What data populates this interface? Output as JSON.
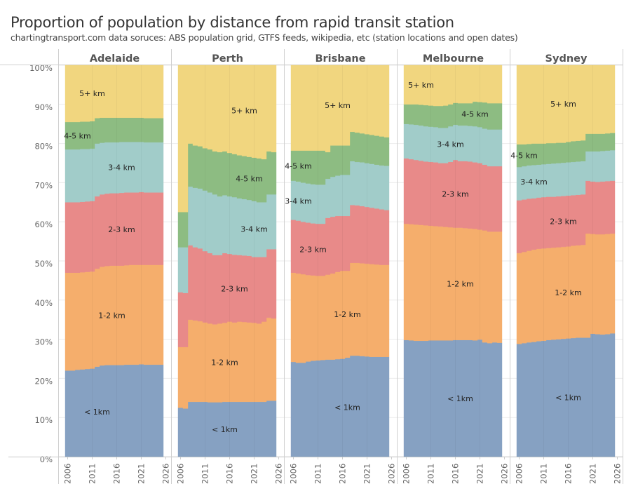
{
  "title": "Proportion of population by distance from rapid transit station",
  "subtitle": "chartingtransport.com  data soruces: ABS population grid, GTFS feeds, wikipedia, etc (station locations and open dates)",
  "chart_data": {
    "type": "area",
    "stacked": true,
    "value_meaning": "cumulative upper boundary (%) of each distance band; 5+ km fills to 100%",
    "ylim": [
      0,
      100
    ],
    "y_ticks": [
      "0%",
      "10%",
      "20%",
      "30%",
      "40%",
      "50%",
      "60%",
      "70%",
      "80%",
      "90%",
      "100%"
    ],
    "x_ticks": [
      "2006",
      "2011",
      "2016",
      "2021",
      "2026"
    ],
    "years": [
      2006,
      2007,
      2008,
      2009,
      2010,
      2011,
      2012,
      2013,
      2014,
      2015,
      2016,
      2017,
      2018,
      2019,
      2020,
      2021,
      2022,
      2023,
      2024,
      2025
    ],
    "bands": [
      "< 1km",
      "1-2 km",
      "2-3 km",
      "3-4 km",
      "4-5 km",
      "5+ km"
    ],
    "colors": [
      "#86a1c2",
      "#f5ae6c",
      "#e88a89",
      "#a1ccc9",
      "#8dbc82",
      "#f1d67f"
    ],
    "panels": [
      {
        "name": "Adelaide",
        "cumulative": [
          [
            22,
            22,
            22.2,
            22.3,
            22.4,
            22.5,
            23,
            23.3,
            23.4,
            23.4,
            23.4,
            23.4,
            23.5,
            23.5,
            23.5,
            23.6,
            23.5,
            23.5,
            23.5,
            23.5
          ],
          [
            47,
            47,
            47,
            47.1,
            47.2,
            47.3,
            48,
            48.5,
            48.7,
            48.8,
            48.8,
            48.8,
            48.9,
            49,
            49,
            49,
            49,
            49,
            49,
            49
          ],
          [
            65,
            65,
            65,
            65.1,
            65.2,
            65.3,
            66.5,
            67,
            67.2,
            67.3,
            67.3,
            67.4,
            67.5,
            67.5,
            67.5,
            67.6,
            67.5,
            67.5,
            67.5,
            67.5
          ],
          [
            78.5,
            78.5,
            78.5,
            78.6,
            78.6,
            78.7,
            80,
            80.2,
            80.3,
            80.3,
            80.3,
            80.4,
            80.4,
            80.4,
            80.4,
            80.4,
            80.3,
            80.3,
            80.3,
            80.3
          ],
          [
            85.5,
            85.5,
            85.5,
            85.6,
            85.6,
            85.7,
            86.5,
            86.6,
            86.6,
            86.6,
            86.6,
            86.6,
            86.6,
            86.6,
            86.6,
            86.6,
            86.5,
            86.5,
            86.5,
            86.5
          ]
        ]
      },
      {
        "name": "Perth",
        "cumulative": [
          [
            12.5,
            12.3,
            14,
            14,
            14,
            14,
            13.9,
            13.9,
            13.9,
            14,
            14,
            14,
            14,
            14,
            14,
            14,
            14,
            14,
            14.3,
            14.3
          ],
          [
            28,
            28,
            35,
            34.8,
            34.6,
            34.3,
            34,
            33.8,
            34,
            34.2,
            34.5,
            34.3,
            34.5,
            34.4,
            34.3,
            34.2,
            34,
            34.5,
            35.5,
            35.3
          ],
          [
            42,
            41.8,
            54,
            53.5,
            53.2,
            52.5,
            52,
            51.5,
            51.5,
            52,
            51.8,
            51.6,
            51.5,
            51.4,
            51.3,
            51,
            51,
            51,
            53,
            53
          ],
          [
            53.5,
            53.5,
            69,
            68.7,
            68.5,
            68,
            67.5,
            67,
            66.5,
            66.8,
            66.5,
            66.3,
            66,
            65.8,
            65.6,
            65.3,
            65,
            65,
            67,
            67
          ],
          [
            62.5,
            62.5,
            80,
            79.5,
            79.3,
            78.8,
            78.5,
            78,
            77.8,
            78,
            77.6,
            77.3,
            77,
            76.8,
            76.6,
            76.4,
            76.2,
            76,
            78,
            77.8
          ]
        ]
      },
      {
        "name": "Brisbane",
        "cumulative": [
          [
            24.2,
            24,
            24,
            24.3,
            24.5,
            24.6,
            24.7,
            24.8,
            24.8,
            24.9,
            25,
            25.3,
            25.8,
            25.8,
            25.7,
            25.6,
            25.5,
            25.5,
            25.5,
            25.5
          ],
          [
            47,
            46.8,
            46.6,
            46.4,
            46.3,
            46.2,
            46.2,
            46.5,
            46.8,
            47.2,
            47.5,
            47.5,
            49.5,
            49.5,
            49.4,
            49.3,
            49.2,
            49.1,
            49,
            49
          ],
          [
            60.5,
            60.3,
            60,
            59.8,
            59.6,
            59.5,
            59.5,
            61,
            61.3,
            61.5,
            61.5,
            61.5,
            64.3,
            64.2,
            64,
            63.8,
            63.6,
            63.4,
            63.2,
            63
          ],
          [
            70.5,
            70.3,
            70,
            69.8,
            69.6,
            69.5,
            69.5,
            71,
            71.5,
            71.8,
            72,
            72,
            75.5,
            75.3,
            75.2,
            75,
            74.8,
            74.6,
            74.4,
            74.3
          ],
          [
            78.2,
            78.2,
            78.2,
            78.2,
            78.2,
            78.2,
            78.2,
            77.8,
            79.5,
            79.5,
            79.5,
            79.5,
            83,
            82.8,
            82.6,
            82.4,
            82.2,
            82,
            81.8,
            81.6
          ]
        ]
      },
      {
        "name": "Melbourne",
        "cumulative": [
          [
            29.8,
            29.7,
            29.6,
            29.6,
            29.6,
            29.7,
            29.7,
            29.7,
            29.7,
            29.7,
            29.8,
            29.8,
            29.8,
            29.8,
            29.7,
            29.9,
            29.2,
            29,
            29.2,
            29.1
          ],
          [
            59.5,
            59.4,
            59.3,
            59.2,
            59.1,
            59,
            58.9,
            58.8,
            58.7,
            58.6,
            58.5,
            58.5,
            58.4,
            58.3,
            58.2,
            58,
            57.8,
            57.5,
            57.5,
            57.5
          ],
          [
            76.2,
            76,
            75.8,
            75.6,
            75.4,
            75.3,
            75.2,
            75,
            75,
            75.3,
            75.8,
            75.5,
            75.5,
            75.4,
            75.2,
            75,
            74.6,
            74.2,
            74.2,
            74.2
          ],
          [
            85,
            84.9,
            84.8,
            84.6,
            84.4,
            84.3,
            84.2,
            84,
            84,
            84.4,
            84.8,
            84.6,
            84.6,
            84.5,
            84.4,
            84.2,
            83.8,
            83.6,
            83.6,
            83.6
          ],
          [
            90,
            90,
            90,
            89.9,
            89.8,
            89.7,
            89.6,
            89.6,
            89.7,
            90,
            90.4,
            90.3,
            90.3,
            90.3,
            90.7,
            90.6,
            90.5,
            90.3,
            90.3,
            90.3
          ]
        ]
      },
      {
        "name": "Sydney",
        "cumulative": [
          [
            28.8,
            29,
            29.2,
            29.3,
            29.5,
            29.6,
            29.8,
            29.9,
            30,
            30.1,
            30.2,
            30.3,
            30.4,
            30.4,
            30.4,
            31.4,
            31.3,
            31.2,
            31.3,
            31.5
          ],
          [
            52,
            52.3,
            52.6,
            52.9,
            53.1,
            53.2,
            53.3,
            53.4,
            53.5,
            53.6,
            53.7,
            53.9,
            54,
            54.1,
            57,
            56.9,
            56.8,
            56.8,
            56.9,
            57
          ],
          [
            65.5,
            65.7,
            65.9,
            66,
            66.2,
            66.3,
            66.4,
            66.4,
            66.5,
            66.6,
            66.7,
            66.8,
            66.9,
            67,
            70.5,
            70.3,
            70.2,
            70.3,
            70.4,
            70.5
          ],
          [
            74,
            74.2,
            74.4,
            74.5,
            74.6,
            74.7,
            74.8,
            74.9,
            75,
            75.1,
            75.2,
            75.3,
            75.4,
            75.5,
            78,
            78,
            78,
            78.1,
            78.2,
            78.3
          ],
          [
            79.8,
            79.8,
            79.9,
            80,
            80,
            80,
            80.1,
            80.1,
            80.2,
            80.2,
            80.4,
            80.6,
            80.7,
            80.8,
            82.5,
            82.5,
            82.5,
            82.5,
            82.6,
            82.7
          ]
        ]
      }
    ]
  }
}
